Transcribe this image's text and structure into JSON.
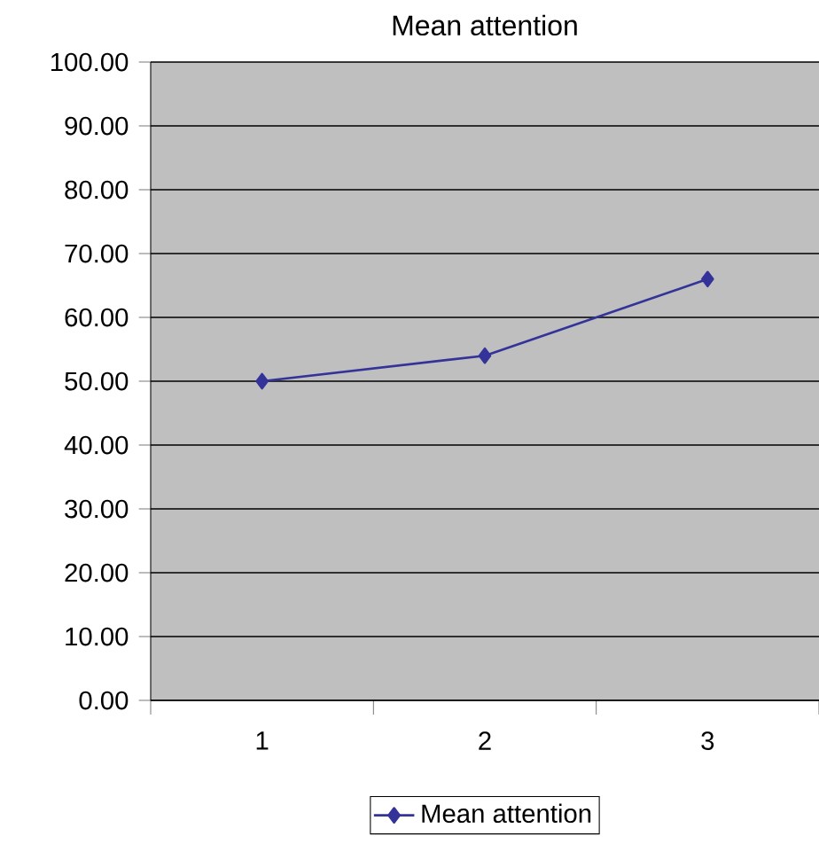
{
  "chart_data": {
    "type": "line",
    "title": "Mean attention",
    "categories": [
      "1",
      "2",
      "3"
    ],
    "series": [
      {
        "name": "Mean attention",
        "color": "#333399",
        "values": [
          50,
          54,
          66
        ]
      }
    ],
    "ylim": [
      0,
      100
    ],
    "yticks": [
      {
        "value": 0,
        "label": "0.00"
      },
      {
        "value": 10,
        "label": "10.00"
      },
      {
        "value": 20,
        "label": "20.00"
      },
      {
        "value": 30,
        "label": "30.00"
      },
      {
        "value": 40,
        "label": "40.00"
      },
      {
        "value": 50,
        "label": "50.00"
      },
      {
        "value": 60,
        "label": "60.00"
      },
      {
        "value": 70,
        "label": "70.00"
      },
      {
        "value": 80,
        "label": "80.00"
      },
      {
        "value": 90,
        "label": "90.00"
      },
      {
        "value": 100,
        "label": "100.00"
      }
    ],
    "grid": "y",
    "legend": "bottom",
    "marker": "diamond",
    "line_style": "solid"
  }
}
